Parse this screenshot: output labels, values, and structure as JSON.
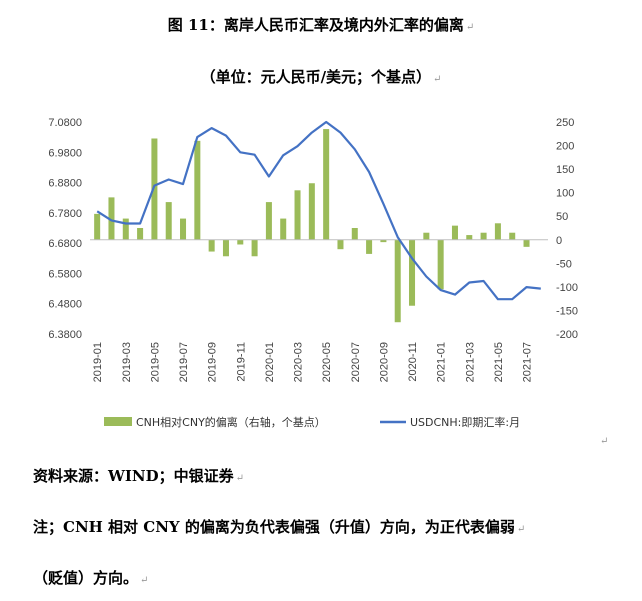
{
  "title": "图 11：离岸人民币汇率及境内外汇率的偏离",
  "subtitle": "（单位：元人民币/美元；个基点）",
  "return_mark": "↵",
  "source": "资料来源：WIND；中银证券",
  "note_line1": "注；CNH 相对 CNY 的偏离为负代表偏强（升值）方向，为正代表偏弱",
  "note_line2": "（贬值）方向。",
  "colors": {
    "bar": "#9BBB59",
    "line": "#4472C4"
  },
  "chart_data": {
    "type": "bar+line",
    "categories": [
      "2019-01",
      "2019-02",
      "2019-03",
      "2019-04",
      "2019-05",
      "2019-06",
      "2019-07",
      "2019-08",
      "2019-09",
      "2019-10",
      "2019-11",
      "2019-12",
      "2020-01",
      "2020-02",
      "2020-03",
      "2020-04",
      "2020-05",
      "2020-06",
      "2020-07",
      "2020-08",
      "2020-09",
      "2020-10",
      "2020-11",
      "2020-12",
      "2021-01",
      "2021-02",
      "2021-03",
      "2021-04",
      "2021-05",
      "2021-06",
      "2021-07",
      "2021-08"
    ],
    "x_tick_labels": [
      "2019-01",
      "2019-03",
      "2019-05",
      "2019-07",
      "2019-09",
      "2019-11",
      "2020-01",
      "2020-03",
      "2020-05",
      "2020-07",
      "2020-09",
      "2020-11",
      "2021-01",
      "2021-03",
      "2021-05",
      "2021-07"
    ],
    "left_axis": {
      "ylim": [
        6.38,
        7.08
      ],
      "ticks": [
        "7.0800",
        "6.9800",
        "6.8800",
        "6.7800",
        "6.6800",
        "6.5800",
        "6.4800",
        "6.3800"
      ]
    },
    "right_axis": {
      "ylim": [
        -200,
        250
      ],
      "ticks": [
        "250",
        "200",
        "150",
        "100",
        "50",
        "0",
        "-50",
        "-100",
        "-150",
        "-200"
      ]
    },
    "series": [
      {
        "name": "CNH相对CNY的偏离（右轴，个基点）",
        "type": "bar",
        "axis": "right",
        "values": [
          55,
          90,
          45,
          25,
          215,
          80,
          45,
          210,
          -25,
          -35,
          -10,
          -35,
          80,
          45,
          105,
          120,
          235,
          -20,
          25,
          -30,
          -5,
          -175,
          -140,
          15,
          -105,
          30,
          10,
          15,
          35,
          15,
          -15,
          0
        ]
      },
      {
        "name": "USDCNH:即期汇率:月",
        "type": "line",
        "axis": "left",
        "values": [
          6.785,
          6.755,
          6.745,
          6.745,
          6.87,
          6.89,
          6.875,
          7.03,
          7.06,
          7.035,
          6.98,
          6.972,
          6.9,
          6.97,
          7.0,
          7.045,
          7.08,
          7.045,
          6.99,
          6.915,
          6.81,
          6.7,
          6.63,
          6.57,
          6.525,
          6.51,
          6.55,
          6.555,
          6.495,
          6.495,
          6.535,
          6.53
        ]
      }
    ]
  }
}
